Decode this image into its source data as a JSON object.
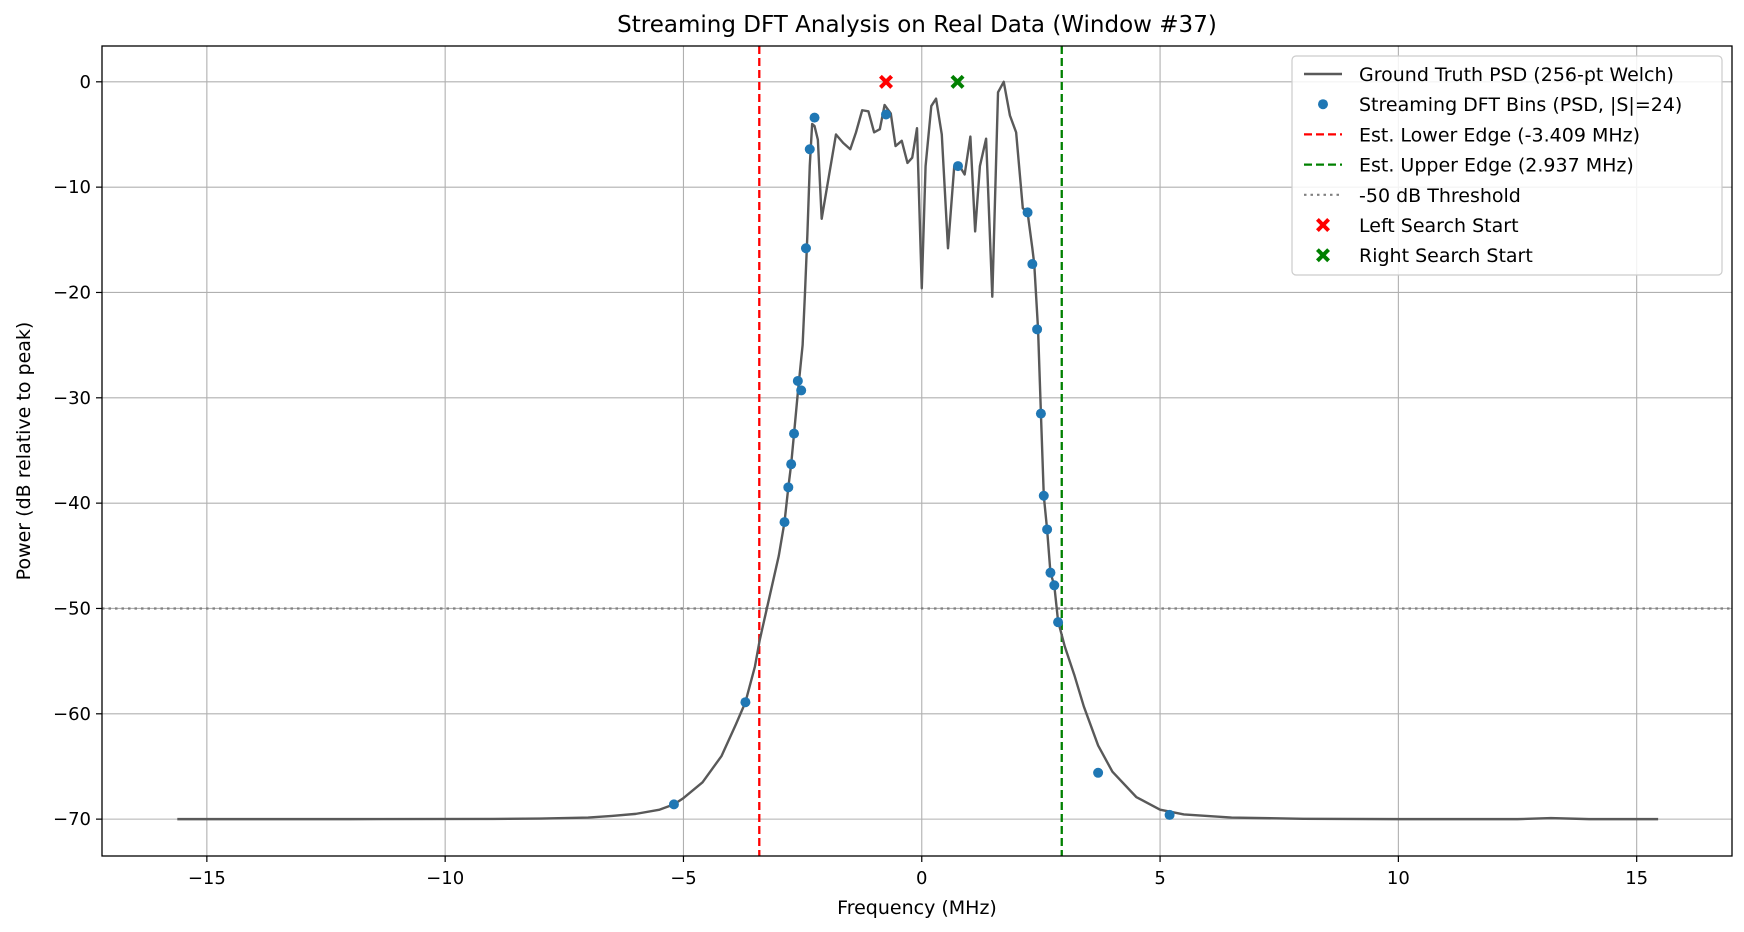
{
  "chart_data": {
    "type": "line",
    "title": "Streaming DFT Analysis on Real Data (Window #37)",
    "xlabel": "Frequency (MHz)",
    "ylabel": "Power (dB relative to peak)",
    "xlim": [
      -17.2,
      17.0
    ],
    "ylim": [
      -73.5,
      3.4
    ],
    "xticks": [
      -15,
      -10,
      -5,
      0,
      5,
      10,
      15
    ],
    "xtick_labels": [
      "−15",
      "−10",
      "−5",
      "0",
      "5",
      "10",
      "15"
    ],
    "yticks": [
      0,
      -10,
      -20,
      -30,
      -40,
      -50,
      -60,
      -70
    ],
    "ytick_labels": [
      "0",
      "−10",
      "−20",
      "−30",
      "−40",
      "−50",
      "−60",
      "−70"
    ],
    "grid": true,
    "legend_position": "top-right",
    "colors": {
      "ground_truth": "#595959",
      "dft_bins": "#1f77b4",
      "lower_edge": "#ff0000",
      "upper_edge": "#008000",
      "threshold": "#808080",
      "left_start": "#ff0000",
      "right_start": "#008000"
    },
    "legend": [
      {
        "key": "ground_truth",
        "label": "Ground Truth PSD (256-pt Welch)"
      },
      {
        "key": "dft_bins",
        "label": "Streaming DFT Bins (PSD, |S|=24)"
      },
      {
        "key": "lower_edge",
        "label": "Est. Lower Edge (-3.409 MHz)"
      },
      {
        "key": "upper_edge",
        "label": "Est. Upper Edge (2.937 MHz)"
      },
      {
        "key": "threshold",
        "label": "-50 dB Threshold"
      },
      {
        "key": "left_start",
        "label": "Left Search Start"
      },
      {
        "key": "right_start",
        "label": "Right Search Start"
      }
    ],
    "series": [
      {
        "name": "Ground Truth PSD (256-pt Welch)",
        "style": "line",
        "points": [
          [
            -15.62,
            -70.0
          ],
          [
            -12,
            -70.0
          ],
          [
            -9,
            -69.98
          ],
          [
            -8,
            -69.95
          ],
          [
            -7,
            -69.85
          ],
          [
            -6.5,
            -69.7
          ],
          [
            -6,
            -69.5
          ],
          [
            -5.5,
            -69.1
          ],
          [
            -5.2,
            -68.6
          ],
          [
            -5,
            -68.0
          ],
          [
            -4.6,
            -66.5
          ],
          [
            -4.2,
            -64.0
          ],
          [
            -3.9,
            -61.0
          ],
          [
            -3.7,
            -58.9
          ],
          [
            -3.5,
            -55.5
          ],
          [
            -3.4,
            -53.0
          ],
          [
            -3.2,
            -49.0
          ],
          [
            -3.0,
            -45.0
          ],
          [
            -2.88,
            -41.8
          ],
          [
            -2.8,
            -38.5
          ],
          [
            -2.74,
            -36.3
          ],
          [
            -2.68,
            -33.4
          ],
          [
            -2.6,
            -29.5
          ],
          [
            -2.5,
            -25.0
          ],
          [
            -2.45,
            -20.0
          ],
          [
            -2.4,
            -14.5
          ],
          [
            -2.35,
            -8.0
          ],
          [
            -2.3,
            -4.0
          ],
          [
            -2.25,
            -4.2
          ],
          [
            -2.18,
            -5.5
          ],
          [
            -2.1,
            -13.0
          ],
          [
            -1.95,
            -9.0
          ],
          [
            -1.8,
            -5.0
          ],
          [
            -1.65,
            -5.8
          ],
          [
            -1.5,
            -6.4
          ],
          [
            -1.38,
            -4.8
          ],
          [
            -1.25,
            -2.7
          ],
          [
            -1.12,
            -2.8
          ],
          [
            -1.0,
            -4.8
          ],
          [
            -0.88,
            -4.5
          ],
          [
            -0.78,
            -2.2
          ],
          [
            -0.65,
            -3.0
          ],
          [
            -0.55,
            -6.1
          ],
          [
            -0.42,
            -5.6
          ],
          [
            -0.3,
            -7.7
          ],
          [
            -0.2,
            -7.2
          ],
          [
            -0.1,
            -4.4
          ],
          [
            0.0,
            -19.6
          ],
          [
            0.08,
            -8.0
          ],
          [
            0.2,
            -2.3
          ],
          [
            0.3,
            -1.6
          ],
          [
            0.42,
            -5.0
          ],
          [
            0.55,
            -15.8
          ],
          [
            0.68,
            -8.1
          ],
          [
            0.78,
            -7.9
          ],
          [
            0.9,
            -8.8
          ],
          [
            1.02,
            -5.2
          ],
          [
            1.12,
            -14.2
          ],
          [
            1.22,
            -8.0
          ],
          [
            1.35,
            -5.4
          ],
          [
            1.48,
            -20.4
          ],
          [
            1.6,
            -1.0
          ],
          [
            1.72,
            -0.0
          ],
          [
            1.85,
            -3.2
          ],
          [
            1.98,
            -4.8
          ],
          [
            2.12,
            -12.0
          ],
          [
            2.22,
            -12.4
          ],
          [
            2.32,
            -15.8
          ],
          [
            2.36,
            -17.3
          ],
          [
            2.44,
            -23.5
          ],
          [
            2.5,
            -31.5
          ],
          [
            2.56,
            -39.3
          ],
          [
            2.63,
            -42.5
          ],
          [
            2.7,
            -46.6
          ],
          [
            2.78,
            -47.8
          ],
          [
            2.86,
            -51.2
          ],
          [
            3.0,
            -53.6
          ],
          [
            3.2,
            -56.3
          ],
          [
            3.4,
            -59.3
          ],
          [
            3.7,
            -63.0
          ],
          [
            4.0,
            -65.5
          ],
          [
            4.5,
            -67.9
          ],
          [
            5.0,
            -69.1
          ],
          [
            5.5,
            -69.55
          ],
          [
            6.5,
            -69.85
          ],
          [
            8,
            -69.97
          ],
          [
            10,
            -70.0
          ],
          [
            12.5,
            -70.0
          ],
          [
            13.2,
            -69.9
          ],
          [
            14,
            -70.0
          ],
          [
            15.45,
            -70.0
          ]
        ]
      },
      {
        "name": "Streaming DFT Bins (PSD, |S|=24)",
        "style": "points",
        "points": [
          [
            -5.2,
            -68.6
          ],
          [
            -3.7,
            -58.9
          ],
          [
            -2.88,
            -41.8
          ],
          [
            -2.8,
            -38.5
          ],
          [
            -2.74,
            -36.3
          ],
          [
            -2.68,
            -33.4
          ],
          [
            -2.6,
            -28.4
          ],
          [
            -2.53,
            -29.3
          ],
          [
            -2.43,
            -15.8
          ],
          [
            -2.35,
            -6.4
          ],
          [
            -2.25,
            -3.4
          ],
          [
            -0.75,
            -3.1
          ],
          [
            0.76,
            -8.0
          ],
          [
            2.22,
            -12.4
          ],
          [
            2.32,
            -17.3
          ],
          [
            2.42,
            -23.5
          ],
          [
            2.5,
            -31.5
          ],
          [
            2.56,
            -39.3
          ],
          [
            2.63,
            -42.5
          ],
          [
            2.7,
            -46.6
          ],
          [
            2.78,
            -47.8
          ],
          [
            2.86,
            -51.3
          ],
          [
            3.7,
            -65.6
          ],
          [
            5.2,
            -69.6
          ]
        ]
      }
    ],
    "vlines": [
      {
        "key": "lower_edge",
        "x": -3.409
      },
      {
        "key": "upper_edge",
        "x": 2.937
      }
    ],
    "hlines": [
      {
        "key": "threshold",
        "y": -50
      }
    ],
    "markers": [
      {
        "key": "left_start",
        "x": -0.75,
        "y": 0
      },
      {
        "key": "right_start",
        "x": 0.75,
        "y": 0
      }
    ]
  }
}
